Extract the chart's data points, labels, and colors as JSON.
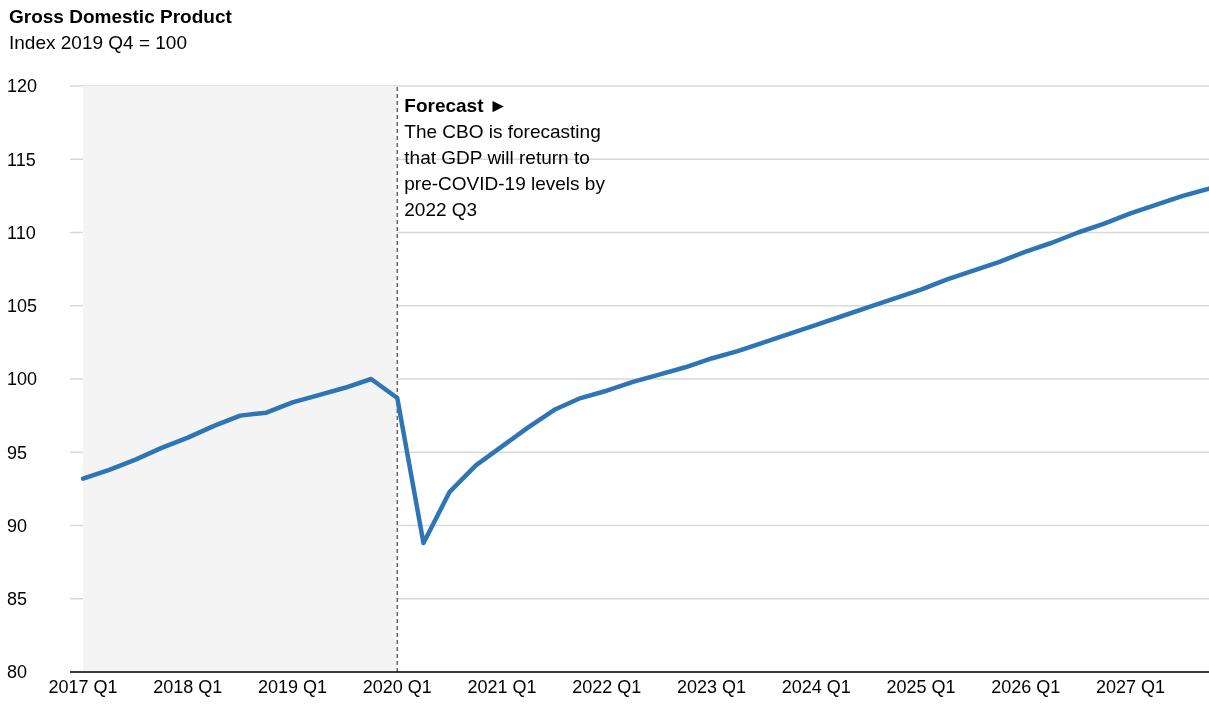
{
  "chart_data": {
    "type": "line",
    "title": "Gross Domestic Product",
    "subtitle": "Index 2019 Q4 = 100",
    "categories": [
      "2017 Q1",
      null,
      null,
      null,
      "2018 Q1",
      null,
      null,
      null,
      "2019 Q1",
      null,
      null,
      null,
      "2020 Q1",
      null,
      null,
      null,
      "2021 Q1",
      null,
      null,
      null,
      "2022 Q1",
      null,
      null,
      null,
      "2023 Q1",
      null,
      null,
      null,
      "2024 Q1",
      null,
      null,
      null,
      "2025 Q1",
      null,
      null,
      null,
      "2026 Q1",
      null,
      null,
      null,
      "2027 Q1",
      null,
      null,
      null
    ],
    "series": [
      {
        "color": "#2e75b6",
        "values": [
          93.2,
          93.8,
          94.5,
          95.3,
          96.0,
          96.8,
          97.5,
          97.7,
          98.4,
          98.9,
          99.4,
          100.0,
          98.7,
          88.8,
          92.3,
          94.1,
          95.4,
          96.7,
          97.9,
          98.7,
          99.2,
          99.8,
          100.3,
          100.8,
          101.4,
          101.9,
          102.5,
          103.1,
          103.7,
          104.3,
          104.9,
          105.5,
          106.1,
          106.8,
          107.4,
          108.0,
          108.7,
          109.3,
          110.0,
          110.6,
          111.3,
          111.9,
          112.5,
          113.0
        ]
      }
    ],
    "ylim": [
      80,
      120
    ],
    "yticks": [
      80,
      85,
      90,
      95,
      100,
      105,
      110,
      115,
      120
    ],
    "grid": "y",
    "marker": "none",
    "line_style": "solid",
    "bands": [
      {
        "axis": "x",
        "from": "2017 Q1",
        "to": "2020 Q1",
        "color": "#f4f4f4"
      }
    ],
    "ref_lines": [
      {
        "axis": "x",
        "value": "2020 Q1",
        "label": "Forecast ►",
        "color": "#666666",
        "line_style": "dashed"
      }
    ],
    "annotations": [
      "The CBO is forecasting that GDP will return to pre-COVID-19 levels by 2022 Q3"
    ]
  }
}
